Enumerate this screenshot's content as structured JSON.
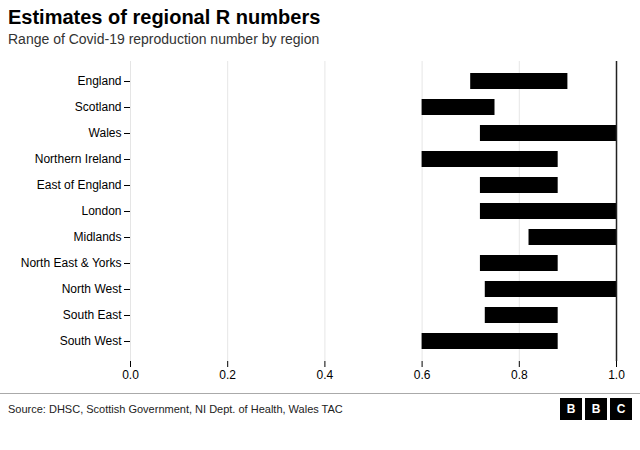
{
  "chart_data": {
    "type": "bar",
    "orientation": "horizontal",
    "title": "Estimates of regional R numbers",
    "subtitle": "Range of Covid-19 reproduction number by region",
    "source": "Source: DHSC, Scottish Government, NI Dept. of Health, Wales TAC",
    "logo": "BBC",
    "categories": [
      "England",
      "Scotland",
      "Wales",
      "Northern Ireland",
      "East of England",
      "London",
      "Midlands",
      "North East & Yorks",
      "North West",
      "South East",
      "South West"
    ],
    "values": [
      [
        0.7,
        0.9
      ],
      [
        0.6,
        0.75
      ],
      [
        0.72,
        1.0
      ],
      [
        0.6,
        0.88
      ],
      [
        0.72,
        0.88
      ],
      [
        0.72,
        1.0
      ],
      [
        0.82,
        1.0
      ],
      [
        0.72,
        0.88
      ],
      [
        0.73,
        1.0
      ],
      [
        0.73,
        0.88
      ],
      [
        0.6,
        0.88
      ]
    ],
    "reference_line": 1.0,
    "xlim": [
      0,
      1.0
    ],
    "xticks": [
      0,
      0.2,
      0.4,
      0.6,
      0.8,
      1
    ],
    "grid": true
  }
}
